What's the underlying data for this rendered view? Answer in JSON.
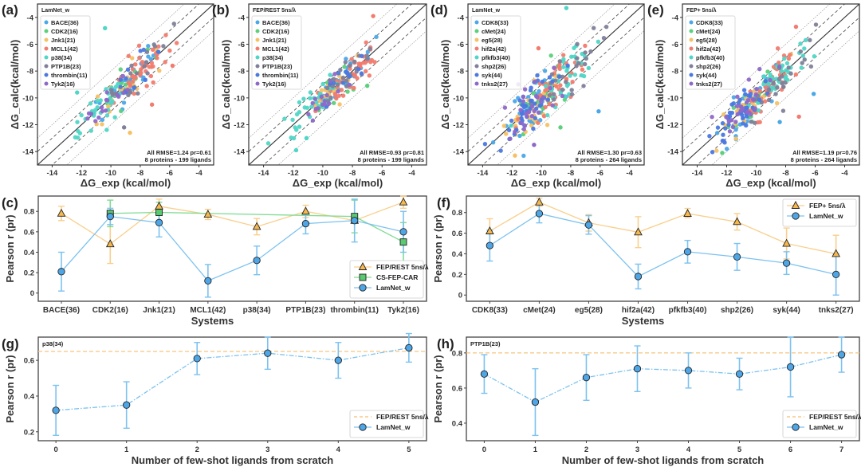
{
  "figure": {
    "panels": [
      "(a)",
      "(b)",
      "(c)",
      "(d)",
      "(e)",
      "(f)",
      "(g)",
      "(h)"
    ]
  },
  "colors": {
    "BACE": "#4aa8e8",
    "CDK2": "#5ad17a",
    "Jnk1": "#f6c164",
    "MCL1": "#f27b6e",
    "p38": "#4fd6c6",
    "PTP1B": "#7f7f9a",
    "thrombin": "#4b78e0",
    "Tyk2": "#8e68c9",
    "CDK8": "#4aa8e8",
    "cMet": "#5ad17a",
    "eg5": "#f6c164",
    "hif2a": "#f27b6e",
    "pfkfb3": "#4fd6c6",
    "shp2": "#7f7f9a",
    "syk": "#4b78e0",
    "tnks2": "#8e68c9",
    "fep": "#f6c16e",
    "csfep": "#5ac972",
    "lamnet": "#5aaee8"
  },
  "chart_data": [
    {
      "id": "a",
      "type": "scatter",
      "panel_label": "(a)",
      "legend_title": "LamNet_w",
      "xlabel": "ΔG_exp (kcal/mol)",
      "ylabel": "ΔG_calc(kcal/mol)",
      "xlim": [
        -15,
        -3
      ],
      "ylim": [
        -15,
        -3
      ],
      "xticks": [
        -14,
        -12,
        -10,
        -8,
        -6,
        -4
      ],
      "yticks": [
        -14,
        -12,
        -10,
        -8,
        -6,
        -4
      ],
      "legend": [
        "BACE(36)",
        "CDK2(16)",
        "Jnk1(21)",
        "MCL1(42)",
        "p38(34)",
        "PTP1B(23)",
        "thrombin(11)",
        "Tyk2(16)"
      ],
      "legend_keys": [
        "BACE",
        "CDK2",
        "Jnk1",
        "MCL1",
        "p38",
        "PTP1B",
        "thrombin",
        "Tyk2"
      ],
      "annotation": [
        "All  RMSE=1.24  pr=0.61",
        "8 proteins - 199 ligands"
      ],
      "reference_lines": {
        "identity": true,
        "dashed_offsets": [
          1,
          -1
        ],
        "dotted_offsets": [
          2,
          -2
        ]
      },
      "spread": 1.05,
      "seed": 11,
      "outliers": [
        [
          -10.4,
          -4.8,
          "p38"
        ],
        [
          -8.7,
          -12.6,
          "Jnk1"
        ],
        [
          -7.2,
          -10.5,
          "MCL1"
        ],
        [
          -5.8,
          -7.6,
          "MCL1"
        ],
        [
          -12.3,
          -9.6,
          "p38"
        ],
        [
          -9.1,
          -12.2,
          "PTP1B"
        ]
      ]
    },
    {
      "id": "b",
      "type": "scatter",
      "panel_label": "(b)",
      "legend_title": "FEP/REST 5ns/λ",
      "xlabel": "ΔG_exp (kcal/mol)",
      "ylabel": "ΔG_calc(kcal/mol)",
      "xlim": [
        -15,
        -3
      ],
      "ylim": [
        -15,
        -3
      ],
      "xticks": [
        -14,
        -12,
        -10,
        -8,
        -6,
        -4
      ],
      "yticks": [
        -14,
        -12,
        -10,
        -8,
        -6,
        -4
      ],
      "legend": [
        "BACE(36)",
        "CDK2(16)",
        "Jnk1(21)",
        "MCL1(42)",
        "p38(34)",
        "PTP1B(23)",
        "thrombin(11)",
        "Tyk2(16)"
      ],
      "legend_keys": [
        "BACE",
        "CDK2",
        "Jnk1",
        "MCL1",
        "p38",
        "PTP1B",
        "thrombin",
        "Tyk2"
      ],
      "annotation": [
        "All  RMSE=0.93  pr=0.81",
        "8 proteins - 199 ligands"
      ],
      "reference_lines": {
        "identity": true,
        "dashed_offsets": [
          1,
          -1
        ],
        "dotted_offsets": [
          2,
          -2
        ]
      },
      "spread": 0.75,
      "seed": 23,
      "outliers": [
        [
          -6.6,
          -3.9,
          "MCL1"
        ],
        [
          -11.8,
          -13.9,
          "p38"
        ],
        [
          -7.0,
          -9.1,
          "CDK2"
        ],
        [
          -11.1,
          -13.0,
          "p38"
        ]
      ]
    },
    {
      "id": "c",
      "type": "line",
      "panel_label": "(c)",
      "xlabel": "Systems",
      "ylabel": "Pearson r (pr)",
      "ylim": [
        -0.08,
        0.95
      ],
      "yticks": [
        0.0,
        0.2,
        0.4,
        0.6,
        0.8
      ],
      "categories": [
        "BACE(36)",
        "CDK2(16)",
        "Jnk1(21)",
        "MCL1(42)",
        "p38(34)",
        "PTP1B(23)",
        "thrombin(11)",
        "Tyk2(16)"
      ],
      "legend_position": "lower-right",
      "series": [
        {
          "name": "FEP/REST 5ns/λ",
          "marker": "triangle",
          "color_key": "fep",
          "values": [
            0.78,
            0.48,
            0.85,
            0.77,
            0.65,
            0.8,
            0.71,
            0.89
          ],
          "err_low": [
            0.71,
            0.29,
            0.78,
            0.72,
            0.57,
            0.74,
            0.71,
            0.83
          ],
          "err_high": [
            0.85,
            0.67,
            0.92,
            0.82,
            0.73,
            0.86,
            0.71,
            0.95
          ]
        },
        {
          "name": "CS-FEP-CAR",
          "marker": "square",
          "color_key": "csfep",
          "values": [
            null,
            0.78,
            0.79,
            null,
            null,
            null,
            0.75,
            0.5
          ],
          "err_low": [
            null,
            0.65,
            0.68,
            null,
            null,
            null,
            0.59,
            0.31
          ],
          "err_high": [
            null,
            0.91,
            0.89,
            null,
            null,
            null,
            0.91,
            0.69
          ]
        },
        {
          "name": "LamNet_w",
          "marker": "circle",
          "color_key": "lamnet",
          "values": [
            0.21,
            0.75,
            0.69,
            0.12,
            0.32,
            0.68,
            0.71,
            0.6
          ],
          "err_low": [
            0.02,
            0.67,
            0.55,
            -0.04,
            0.18,
            0.58,
            0.5,
            0.4
          ],
          "err_high": [
            0.4,
            0.83,
            0.83,
            0.28,
            0.46,
            0.77,
            0.92,
            0.8
          ]
        }
      ]
    },
    {
      "id": "d",
      "type": "scatter",
      "panel_label": "(d)",
      "legend_title": "LamNet_w",
      "xlabel": "ΔG_exp (kcal/mol)",
      "ylabel": "ΔG_calc(kcal/mol)",
      "xlim": [
        -15,
        -3
      ],
      "ylim": [
        -15,
        -3
      ],
      "xticks": [
        -14,
        -12,
        -10,
        -8,
        -6,
        -4
      ],
      "yticks": [
        -14,
        -12,
        -10,
        -8,
        -6,
        -4
      ],
      "legend": [
        "CDK8(33)",
        "cMet(24)",
        "eg5(28)",
        "hif2a(42)",
        "pfkfb3(40)",
        "shp2(26)",
        "syk(44)",
        "tnks2(27)"
      ],
      "legend_keys": [
        "CDK8",
        "cMet",
        "eg5",
        "hif2a",
        "pfkfb3",
        "shp2",
        "syk",
        "tnks2"
      ],
      "annotation": [
        "All  RMSE=1.30  pr=0.63",
        "8 proteins - 264 ligands"
      ],
      "reference_lines": {
        "identity": true,
        "dashed_offsets": [
          1,
          -1
        ],
        "dotted_offsets": [
          2,
          -2
        ]
      },
      "spread": 1.2,
      "seed": 37,
      "outliers": [
        [
          -8.3,
          -3.3,
          "pfkfb3"
        ],
        [
          -6.1,
          -11.0,
          "CDK8"
        ],
        [
          -11.8,
          -14.3,
          "eg5"
        ],
        [
          -8.7,
          -12.2,
          "cMet"
        ],
        [
          -10.2,
          -6.3,
          "hif2a"
        ],
        [
          -10.5,
          -13.5,
          "tnks2"
        ]
      ]
    },
    {
      "id": "e",
      "type": "scatter",
      "panel_label": "(e)",
      "legend_title": "FEP+ 5ns/λ",
      "xlabel": "ΔG_exp (kcal/mol)",
      "ylabel": "ΔG_calc(kcal/mol)",
      "xlim": [
        -15,
        -3
      ],
      "ylim": [
        -15,
        -3
      ],
      "xticks": [
        -14,
        -12,
        -10,
        -8,
        -6,
        -4
      ],
      "yticks": [
        -14,
        -12,
        -10,
        -8,
        -6,
        -4
      ],
      "legend": [
        "CDK8(33)",
        "cMet(24)",
        "eg5(28)",
        "hif2a(42)",
        "pfkfb3(40)",
        "shp2(26)",
        "syk(44)",
        "tnks2(27)"
      ],
      "legend_keys": [
        "CDK8",
        "cMet",
        "eg5",
        "hif2a",
        "pfkfb3",
        "shp2",
        "syk",
        "tnks2"
      ],
      "annotation": [
        "All  RMSE=1.19  pr=0.76",
        "8 proteins - 264 ligands"
      ],
      "reference_lines": {
        "identity": true,
        "dashed_offsets": [
          1,
          -1
        ],
        "dotted_offsets": [
          2,
          -2
        ]
      },
      "spread": 1.0,
      "seed": 53,
      "outliers": [
        [
          -7.3,
          -4.7,
          "hif2a"
        ],
        [
          -6.1,
          -9.7,
          "CDK8"
        ],
        [
          -7.1,
          -11.4,
          "hif2a"
        ],
        [
          -12.3,
          -14.1,
          "cMet"
        ],
        [
          -8.4,
          -11.8,
          "CDK8"
        ]
      ]
    },
    {
      "id": "f",
      "type": "line",
      "panel_label": "(f)",
      "xlabel": "Systems",
      "ylabel": "Pearson r (pr)",
      "ylim": [
        -0.06,
        0.96
      ],
      "yticks": [
        0.0,
        0.2,
        0.4,
        0.6,
        0.8
      ],
      "categories": [
        "CDK8(33)",
        "cMet(24)",
        "eg5(28)",
        "hif2a(42)",
        "pfkfb3(40)",
        "shp2(26)",
        "syk(44)",
        "tnks2(27)"
      ],
      "legend_position": "upper-right",
      "series": [
        {
          "name": "FEP+ 5ns/λ",
          "marker": "triangle",
          "color_key": "fep",
          "values": [
            0.62,
            0.9,
            0.7,
            0.61,
            0.79,
            0.71,
            0.5,
            0.4
          ],
          "err_low": [
            0.5,
            0.86,
            0.62,
            0.46,
            0.75,
            0.63,
            0.35,
            0.2
          ],
          "err_high": [
            0.74,
            0.94,
            0.78,
            0.76,
            0.84,
            0.79,
            0.65,
            0.58
          ]
        },
        {
          "name": "LamNet_w",
          "marker": "circle",
          "color_key": "lamnet",
          "values": [
            0.48,
            0.79,
            0.68,
            0.18,
            0.42,
            0.37,
            0.31,
            0.2
          ],
          "err_low": [
            0.33,
            0.7,
            0.59,
            0.06,
            0.31,
            0.24,
            0.2,
            0.0
          ],
          "err_high": [
            0.63,
            0.88,
            0.77,
            0.3,
            0.53,
            0.5,
            0.42,
            0.4
          ]
        }
      ]
    },
    {
      "id": "g",
      "type": "line",
      "panel_label": "(g)",
      "subtitle": "p38(34)",
      "xlabel": "Number of few-shot ligands from scratch",
      "ylabel": "Pearson r (pr)",
      "ylim": [
        0.15,
        0.73
      ],
      "yticks": [
        0.2,
        0.4,
        0.6
      ],
      "x": [
        0,
        1,
        2,
        3,
        4,
        5
      ],
      "xlim": [
        -0.25,
        5.25
      ],
      "legend_position": "lower-right",
      "reference": {
        "name": "FEP/REST 5ns/λ",
        "value": 0.65,
        "color_key": "fep"
      },
      "series": [
        {
          "name": "LamNet_w",
          "marker": "circle",
          "color_key": "lamnet",
          "values": [
            0.32,
            0.35,
            0.61,
            0.64,
            0.6,
            0.67
          ],
          "err_low": [
            0.18,
            0.22,
            0.52,
            0.55,
            0.5,
            0.59
          ],
          "err_high": [
            0.46,
            0.48,
            0.7,
            0.73,
            0.7,
            0.75
          ]
        }
      ]
    },
    {
      "id": "h",
      "type": "line",
      "panel_label": "(h)",
      "subtitle": "PTP1B(23)",
      "xlabel": "Number of few-shot ligands from scratch",
      "ylabel": "Pearson r (pr)",
      "ylim": [
        0.3,
        0.89
      ],
      "yticks": [
        0.4,
        0.6,
        0.8
      ],
      "x": [
        0,
        1,
        2,
        3,
        4,
        5,
        6,
        7
      ],
      "xlim": [
        -0.35,
        7.35
      ],
      "legend_position": "lower-right",
      "reference": {
        "name": "FEP/REST 5ns/λ",
        "value": 0.8,
        "color_key": "fep"
      },
      "series": [
        {
          "name": "LamNet_w",
          "marker": "circle",
          "color_key": "lamnet",
          "values": [
            0.68,
            0.52,
            0.66,
            0.71,
            0.7,
            0.68,
            0.72,
            0.79
          ],
          "err_low": [
            0.57,
            0.33,
            0.53,
            0.58,
            0.6,
            0.59,
            0.55,
            0.69
          ],
          "err_high": [
            0.79,
            0.71,
            0.79,
            0.84,
            0.8,
            0.77,
            0.89,
            0.89
          ]
        }
      ]
    }
  ]
}
